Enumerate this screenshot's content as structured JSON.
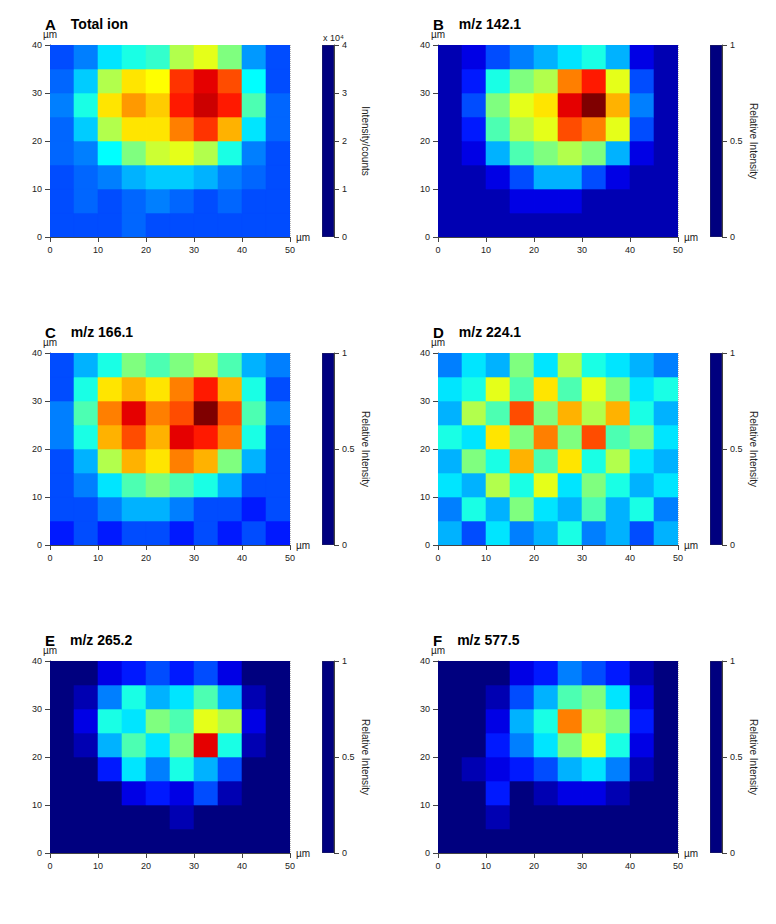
{
  "chart_data": [
    {
      "type": "heatmap",
      "label": "A",
      "title": "Total ion",
      "xlabel": "µm",
      "ylabel": "µm",
      "grid": true,
      "xlim": [
        0,
        50
      ],
      "xticks": [
        0,
        10,
        20,
        30,
        40,
        50
      ],
      "ylim": [
        0,
        40
      ],
      "yticks": [
        0,
        10,
        20,
        30,
        40
      ],
      "x_edges": [
        0,
        5,
        10,
        15,
        20,
        25,
        30,
        35,
        40,
        45,
        50
      ],
      "y_edges": [
        0,
        5,
        10,
        15,
        20,
        25,
        30,
        35,
        40
      ],
      "color_label": "Intensity/counts",
      "color_scale_label": "x 10⁴",
      "color_range": [
        0,
        4
      ],
      "color_ticks": [
        0,
        1,
        2,
        3,
        4
      ],
      "cells": [
        [
          0.8,
          0.8,
          0.8,
          0.9,
          0.8,
          0.8,
          0.8,
          0.8,
          0.8,
          0.8
        ],
        [
          0.8,
          0.9,
          0.8,
          0.9,
          1.0,
          0.9,
          0.8,
          0.9,
          0.8,
          0.8
        ],
        [
          0.8,
          0.9,
          1.0,
          1.2,
          1.3,
          1.3,
          1.2,
          1.0,
          0.9,
          0.8
        ],
        [
          0.9,
          1.0,
          1.5,
          2.0,
          2.3,
          2.4,
          2.2,
          1.6,
          1.0,
          0.8
        ],
        [
          0.9,
          1.3,
          2.2,
          2.6,
          2.6,
          3.0,
          3.3,
          2.8,
          1.4,
          0.9
        ],
        [
          1.0,
          1.6,
          2.6,
          2.9,
          2.7,
          3.4,
          3.7,
          3.4,
          1.8,
          0.9
        ],
        [
          0.9,
          1.3,
          2.2,
          2.6,
          2.5,
          3.3,
          3.6,
          3.2,
          1.5,
          0.8
        ],
        [
          0.8,
          1.0,
          1.4,
          1.6,
          1.7,
          2.2,
          2.4,
          2.0,
          1.1,
          0.8
        ]
      ]
    },
    {
      "type": "heatmap",
      "label": "B",
      "title": "m/z 142.1",
      "xlabel": "µm",
      "ylabel": "µm",
      "grid": true,
      "xlim": [
        0,
        50
      ],
      "xticks": [
        0,
        10,
        20,
        30,
        40,
        50
      ],
      "ylim": [
        0,
        40
      ],
      "yticks": [
        0,
        10,
        20,
        30,
        40
      ],
      "x_edges": [
        0,
        5,
        10,
        15,
        20,
        25,
        30,
        35,
        40,
        45,
        50
      ],
      "y_edges": [
        0,
        5,
        10,
        15,
        20,
        25,
        30,
        35,
        40
      ],
      "color_label": "Relative Intensity",
      "color_range": [
        0,
        1
      ],
      "color_ticks": [
        0,
        0.5,
        1
      ],
      "cells": [
        [
          0.05,
          0.05,
          0.05,
          0.05,
          0.05,
          0.05,
          0.05,
          0.05,
          0.05,
          0.05
        ],
        [
          0.05,
          0.05,
          0.05,
          0.1,
          0.1,
          0.1,
          0.05,
          0.05,
          0.05,
          0.05
        ],
        [
          0.05,
          0.05,
          0.1,
          0.2,
          0.3,
          0.3,
          0.2,
          0.1,
          0.05,
          0.05
        ],
        [
          0.05,
          0.1,
          0.3,
          0.45,
          0.5,
          0.55,
          0.5,
          0.3,
          0.1,
          0.05
        ],
        [
          0.05,
          0.15,
          0.45,
          0.55,
          0.6,
          0.8,
          0.75,
          0.6,
          0.2,
          0.05
        ],
        [
          0.05,
          0.2,
          0.5,
          0.6,
          0.65,
          0.9,
          1.0,
          0.7,
          0.25,
          0.05
        ],
        [
          0.05,
          0.15,
          0.4,
          0.5,
          0.55,
          0.75,
          0.85,
          0.6,
          0.2,
          0.05
        ],
        [
          0.05,
          0.1,
          0.2,
          0.25,
          0.3,
          0.35,
          0.4,
          0.3,
          0.1,
          0.05
        ]
      ]
    },
    {
      "type": "heatmap",
      "label": "C",
      "title": "m/z 166.1",
      "xlabel": "µm",
      "ylabel": "µm",
      "grid": true,
      "xlim": [
        0,
        50
      ],
      "xticks": [
        0,
        10,
        20,
        30,
        40,
        50
      ],
      "ylim": [
        0,
        40
      ],
      "yticks": [
        0,
        10,
        20,
        30,
        40
      ],
      "x_edges": [
        0,
        5,
        10,
        15,
        20,
        25,
        30,
        35,
        40,
        45,
        50
      ],
      "y_edges": [
        0,
        5,
        10,
        15,
        20,
        25,
        30,
        35,
        40
      ],
      "color_label": "Relative Intensity",
      "color_range": [
        0,
        1
      ],
      "color_ticks": [
        0,
        0.5,
        1
      ],
      "cells": [
        [
          0.15,
          0.2,
          0.15,
          0.2,
          0.2,
          0.15,
          0.2,
          0.15,
          0.2,
          0.15
        ],
        [
          0.2,
          0.2,
          0.25,
          0.3,
          0.3,
          0.25,
          0.2,
          0.2,
          0.15,
          0.2
        ],
        [
          0.2,
          0.25,
          0.35,
          0.45,
          0.5,
          0.45,
          0.4,
          0.3,
          0.2,
          0.2
        ],
        [
          0.2,
          0.3,
          0.55,
          0.7,
          0.65,
          0.75,
          0.7,
          0.5,
          0.3,
          0.2
        ],
        [
          0.25,
          0.4,
          0.7,
          0.8,
          0.7,
          0.9,
          0.85,
          0.75,
          0.4,
          0.2
        ],
        [
          0.25,
          0.45,
          0.75,
          0.9,
          0.75,
          0.8,
          1.0,
          0.8,
          0.45,
          0.25
        ],
        [
          0.2,
          0.4,
          0.65,
          0.7,
          0.65,
          0.75,
          0.85,
          0.7,
          0.4,
          0.2
        ],
        [
          0.2,
          0.3,
          0.4,
          0.5,
          0.45,
          0.5,
          0.55,
          0.45,
          0.3,
          0.25
        ]
      ]
    },
    {
      "type": "heatmap",
      "label": "D",
      "title": "m/z 224.1",
      "xlabel": "µm",
      "ylabel": "µm",
      "grid": true,
      "xlim": [
        0,
        50
      ],
      "xticks": [
        0,
        10,
        20,
        30,
        40,
        50
      ],
      "ylim": [
        0,
        40
      ],
      "yticks": [
        0,
        10,
        20,
        30,
        40
      ],
      "x_edges": [
        0,
        5,
        10,
        15,
        20,
        25,
        30,
        35,
        40,
        45,
        50
      ],
      "y_edges": [
        0,
        5,
        10,
        15,
        20,
        25,
        30,
        35,
        40
      ],
      "color_label": "Relative Intensity",
      "color_range": [
        0,
        1
      ],
      "color_ticks": [
        0,
        0.5,
        1
      ],
      "cells": [
        [
          0.3,
          0.2,
          0.35,
          0.25,
          0.3,
          0.4,
          0.25,
          0.3,
          0.2,
          0.3
        ],
        [
          0.25,
          0.4,
          0.3,
          0.5,
          0.35,
          0.3,
          0.45,
          0.3,
          0.4,
          0.25
        ],
        [
          0.35,
          0.3,
          0.55,
          0.4,
          0.6,
          0.35,
          0.5,
          0.4,
          0.3,
          0.35
        ],
        [
          0.3,
          0.5,
          0.4,
          0.7,
          0.45,
          0.65,
          0.4,
          0.55,
          0.35,
          0.3
        ],
        [
          0.4,
          0.35,
          0.65,
          0.5,
          0.75,
          0.5,
          0.8,
          0.45,
          0.5,
          0.35
        ],
        [
          0.3,
          0.55,
          0.45,
          0.8,
          0.5,
          0.7,
          0.55,
          0.7,
          0.4,
          0.3
        ],
        [
          0.35,
          0.4,
          0.6,
          0.45,
          0.65,
          0.45,
          0.6,
          0.5,
          0.35,
          0.4
        ],
        [
          0.25,
          0.35,
          0.3,
          0.5,
          0.35,
          0.55,
          0.4,
          0.35,
          0.3,
          0.25
        ]
      ]
    },
    {
      "type": "heatmap",
      "label": "E",
      "title": "m/z 265.2",
      "xlabel": "µm",
      "ylabel": "µm",
      "grid": true,
      "xlim": [
        0,
        50
      ],
      "xticks": [
        0,
        10,
        20,
        30,
        40,
        50
      ],
      "ylim": [
        0,
        40
      ],
      "yticks": [
        0,
        10,
        20,
        30,
        40
      ],
      "x_edges": [
        0,
        5,
        10,
        15,
        20,
        25,
        30,
        35,
        40,
        45,
        50
      ],
      "y_edges": [
        0,
        5,
        10,
        15,
        20,
        25,
        30,
        35,
        40
      ],
      "color_label": "Relative Intensity",
      "color_range": [
        0,
        1
      ],
      "color_ticks": [
        0,
        0.5,
        1
      ],
      "cells": [
        [
          0,
          0,
          0,
          0,
          0,
          0,
          0,
          0,
          0,
          0
        ],
        [
          0,
          0,
          0,
          0,
          0,
          0.05,
          0,
          0,
          0,
          0
        ],
        [
          0,
          0,
          0,
          0.1,
          0.15,
          0.1,
          0.2,
          0.05,
          0,
          0
        ],
        [
          0,
          0,
          0.15,
          0.35,
          0.25,
          0.4,
          0.3,
          0.2,
          0,
          0
        ],
        [
          0,
          0.05,
          0.3,
          0.45,
          0.35,
          0.5,
          0.9,
          0.4,
          0.05,
          0
        ],
        [
          0,
          0.1,
          0.4,
          0.35,
          0.5,
          0.45,
          0.6,
          0.55,
          0.1,
          0
        ],
        [
          0,
          0.05,
          0.25,
          0.4,
          0.3,
          0.35,
          0.45,
          0.3,
          0.05,
          0
        ],
        [
          0,
          0,
          0.1,
          0.15,
          0.2,
          0.15,
          0.2,
          0.1,
          0,
          0
        ]
      ]
    },
    {
      "type": "heatmap",
      "label": "F",
      "title": "m/z 577.5",
      "xlabel": "µm",
      "ylabel": "µm",
      "grid": true,
      "xlim": [
        0,
        50
      ],
      "xticks": [
        0,
        10,
        20,
        30,
        40,
        50
      ],
      "ylim": [
        0,
        40
      ],
      "yticks": [
        0,
        10,
        20,
        30,
        40
      ],
      "x_edges": [
        0,
        5,
        10,
        15,
        20,
        25,
        30,
        35,
        40,
        45,
        50
      ],
      "y_edges": [
        0,
        5,
        10,
        15,
        20,
        25,
        30,
        35,
        40
      ],
      "color_label": "Relative Intensity",
      "color_range": [
        0,
        1
      ],
      "color_ticks": [
        0,
        0.5,
        1
      ],
      "cells": [
        [
          0,
          0,
          0,
          0,
          0,
          0,
          0,
          0,
          0,
          0
        ],
        [
          0,
          0,
          0.05,
          0,
          0,
          0,
          0,
          0,
          0,
          0
        ],
        [
          0,
          0,
          0.15,
          0,
          0.05,
          0.1,
          0.1,
          0.05,
          0,
          0
        ],
        [
          0,
          0.05,
          0.1,
          0.15,
          0.2,
          0.3,
          0.35,
          0.25,
          0.05,
          0
        ],
        [
          0,
          0,
          0.15,
          0.25,
          0.35,
          0.5,
          0.6,
          0.4,
          0.1,
          0
        ],
        [
          0,
          0,
          0.1,
          0.3,
          0.4,
          0.75,
          0.55,
          0.5,
          0.15,
          0
        ],
        [
          0,
          0,
          0.05,
          0.2,
          0.3,
          0.45,
          0.5,
          0.35,
          0.1,
          0
        ],
        [
          0,
          0,
          0,
          0.1,
          0.15,
          0.25,
          0.2,
          0.15,
          0.05,
          0
        ]
      ]
    }
  ]
}
